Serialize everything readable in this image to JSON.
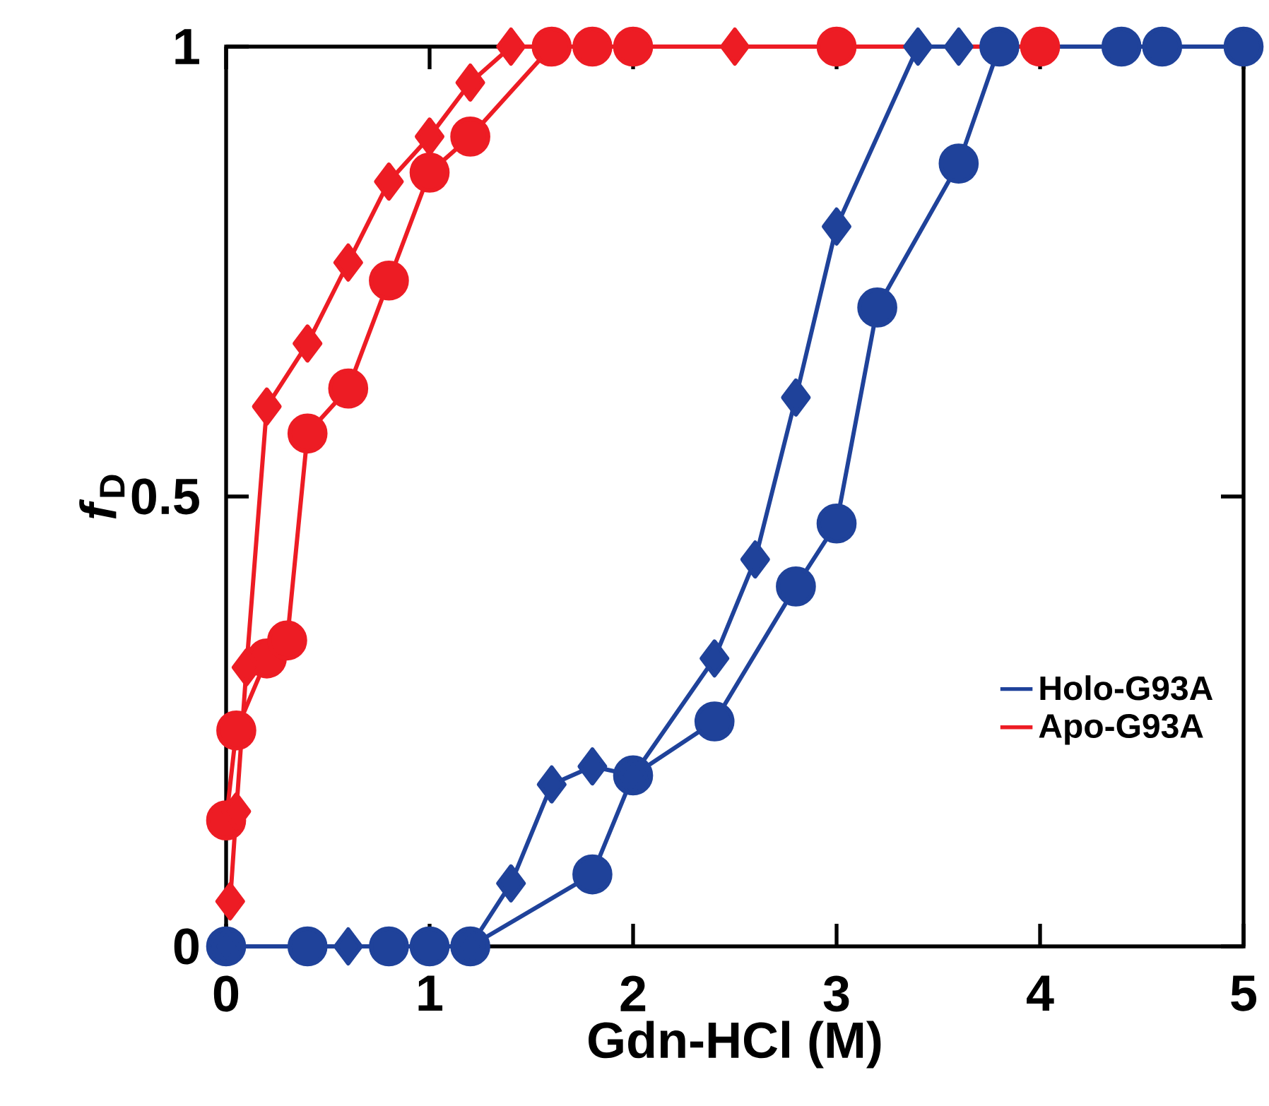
{
  "chart_data": {
    "type": "line",
    "xlabel": "Gdn-HCl (M)",
    "ylabel": "*f*$_{D}$",
    "xlim": [
      0,
      5
    ],
    "ylim": [
      0,
      1
    ],
    "xticks": [
      0,
      1,
      2,
      3,
      4,
      5
    ],
    "yticks": [
      0,
      0.5,
      1
    ],
    "legend": "bottom right",
    "grid": false,
    "series": [
      {
        "name": "Holo-G93A",
        "color": "#1f429a",
        "marker": "circle",
        "x": [
          0,
          0.4,
          0.8,
          1.0,
          1.2,
          1.8,
          2.0,
          2.4,
          2.8,
          3.0,
          3.2,
          3.6,
          3.8,
          4.4,
          4.6,
          5.0
        ],
        "values": [
          0,
          0,
          0,
          0,
          0,
          0.08,
          0.19,
          0.25,
          0.4,
          0.47,
          0.71,
          0.87,
          1,
          1,
          1,
          1
        ]
      },
      {
        "name": "Apo-G93A",
        "color": "#ed1c24",
        "marker": "circle",
        "x": [
          0,
          0.05,
          0.2,
          0.3,
          0.4,
          0.6,
          0.8,
          1.0,
          1.2,
          1.6,
          1.8,
          2.0,
          3.0,
          4.0
        ],
        "values": [
          0.14,
          0.24,
          0.32,
          0.34,
          0.57,
          0.62,
          0.74,
          0.86,
          0.9,
          1,
          1,
          1,
          1,
          1
        ]
      },
      {
        "color": "#1f429a",
        "marker": "diamond",
        "x": [
          0,
          0.6,
          1.2,
          1.4,
          1.6,
          1.8,
          2.0,
          2.4,
          2.6,
          2.8,
          3.0,
          3.4,
          3.6
        ],
        "values": [
          0,
          0,
          0,
          0.07,
          0.18,
          0.2,
          0.19,
          0.32,
          0.43,
          0.61,
          0.8,
          1,
          1
        ]
      },
      {
        "color": "#ed1c24",
        "marker": "diamond",
        "x": [
          0.02,
          0.05,
          0.1,
          0.2,
          0.4,
          0.6,
          0.8,
          1.0,
          1.2,
          1.4,
          2.5
        ],
        "values": [
          0.05,
          0.15,
          0.31,
          0.6,
          0.67,
          0.76,
          0.85,
          0.9,
          0.96,
          1,
          1
        ]
      }
    ]
  }
}
